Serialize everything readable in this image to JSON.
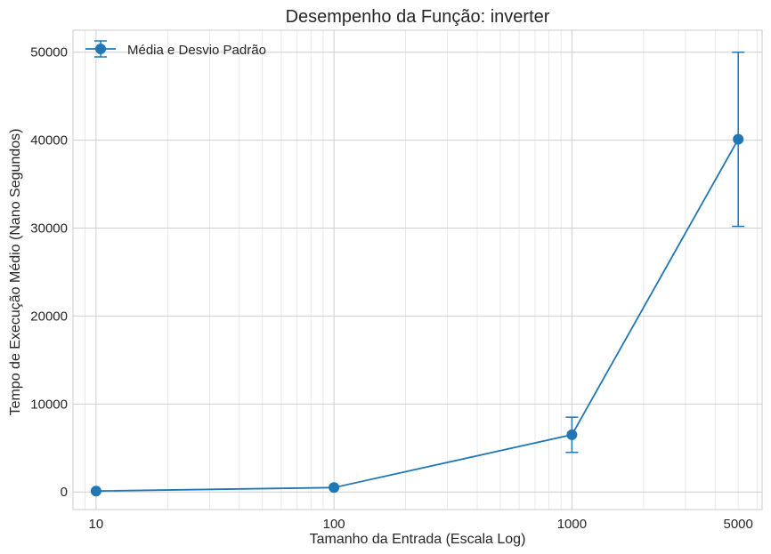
{
  "chart_data": {
    "type": "line",
    "title": "Desempenho da Função: inverter",
    "xlabel": "Tamanho da Entrada (Escala Log)",
    "ylabel": "Tempo de Execução Médio (Nano Segundos)",
    "x_scale": "log",
    "xlim": [
      8,
      6300
    ],
    "ylim": [
      -2000,
      52500
    ],
    "xticks": [
      10,
      100,
      1000,
      5000
    ],
    "xtick_labels": [
      "10",
      "100",
      "1000",
      "5000"
    ],
    "yticks": [
      0,
      10000,
      20000,
      30000,
      40000,
      50000
    ],
    "ytick_labels": [
      "0",
      "10000",
      "20000",
      "30000",
      "40000",
      "50000"
    ],
    "grid": true,
    "legend_position": "top-left",
    "series": [
      {
        "name": "Média e Desvio Padrão",
        "color": "#1f77b4",
        "marker": "circle",
        "points": [
          {
            "x": 10,
            "y": 100,
            "err": 0
          },
          {
            "x": 100,
            "y": 500,
            "err": 0
          },
          {
            "x": 1000,
            "y": 6500,
            "err": 2000
          },
          {
            "x": 5000,
            "y": 40100,
            "err": 9900
          }
        ]
      }
    ]
  }
}
